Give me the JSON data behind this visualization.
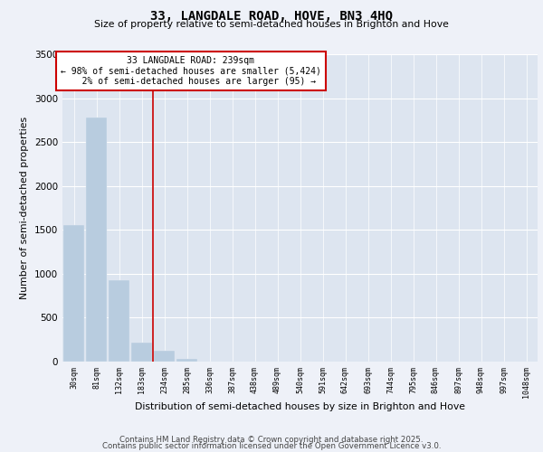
{
  "title": "33, LANGDALE ROAD, HOVE, BN3 4HQ",
  "subtitle": "Size of property relative to semi-detached houses in Brighton and Hove",
  "xlabel": "Distribution of semi-detached houses by size in Brighton and Hove",
  "ylabel": "Number of semi-detached properties",
  "categories": [
    "30sqm",
    "81sqm",
    "132sqm",
    "183sqm",
    "234sqm",
    "285sqm",
    "336sqm",
    "387sqm",
    "438sqm",
    "489sqm",
    "540sqm",
    "591sqm",
    "642sqm",
    "693sqm",
    "744sqm",
    "795sqm",
    "846sqm",
    "897sqm",
    "948sqm",
    "997sqm",
    "1048sqm"
  ],
  "values": [
    1550,
    2780,
    930,
    220,
    120,
    30,
    0,
    0,
    0,
    0,
    0,
    0,
    0,
    0,
    0,
    0,
    0,
    0,
    0,
    0,
    0
  ],
  "bar_color": "#b8ccdf",
  "property_line_x": 3.5,
  "property_sqm": 239,
  "pct_smaller": 98,
  "count_smaller": 5424,
  "pct_larger": 2,
  "count_larger": 95,
  "annotation_box_color": "#cc0000",
  "ylim": [
    0,
    3500
  ],
  "yticks": [
    0,
    500,
    1000,
    1500,
    2000,
    2500,
    3000,
    3500
  ],
  "background_color": "#eef1f8",
  "plot_bg_color": "#dde5f0",
  "footer_line1": "Contains HM Land Registry data © Crown copyright and database right 2025.",
  "footer_line2": "Contains public sector information licensed under the Open Government Licence v3.0."
}
